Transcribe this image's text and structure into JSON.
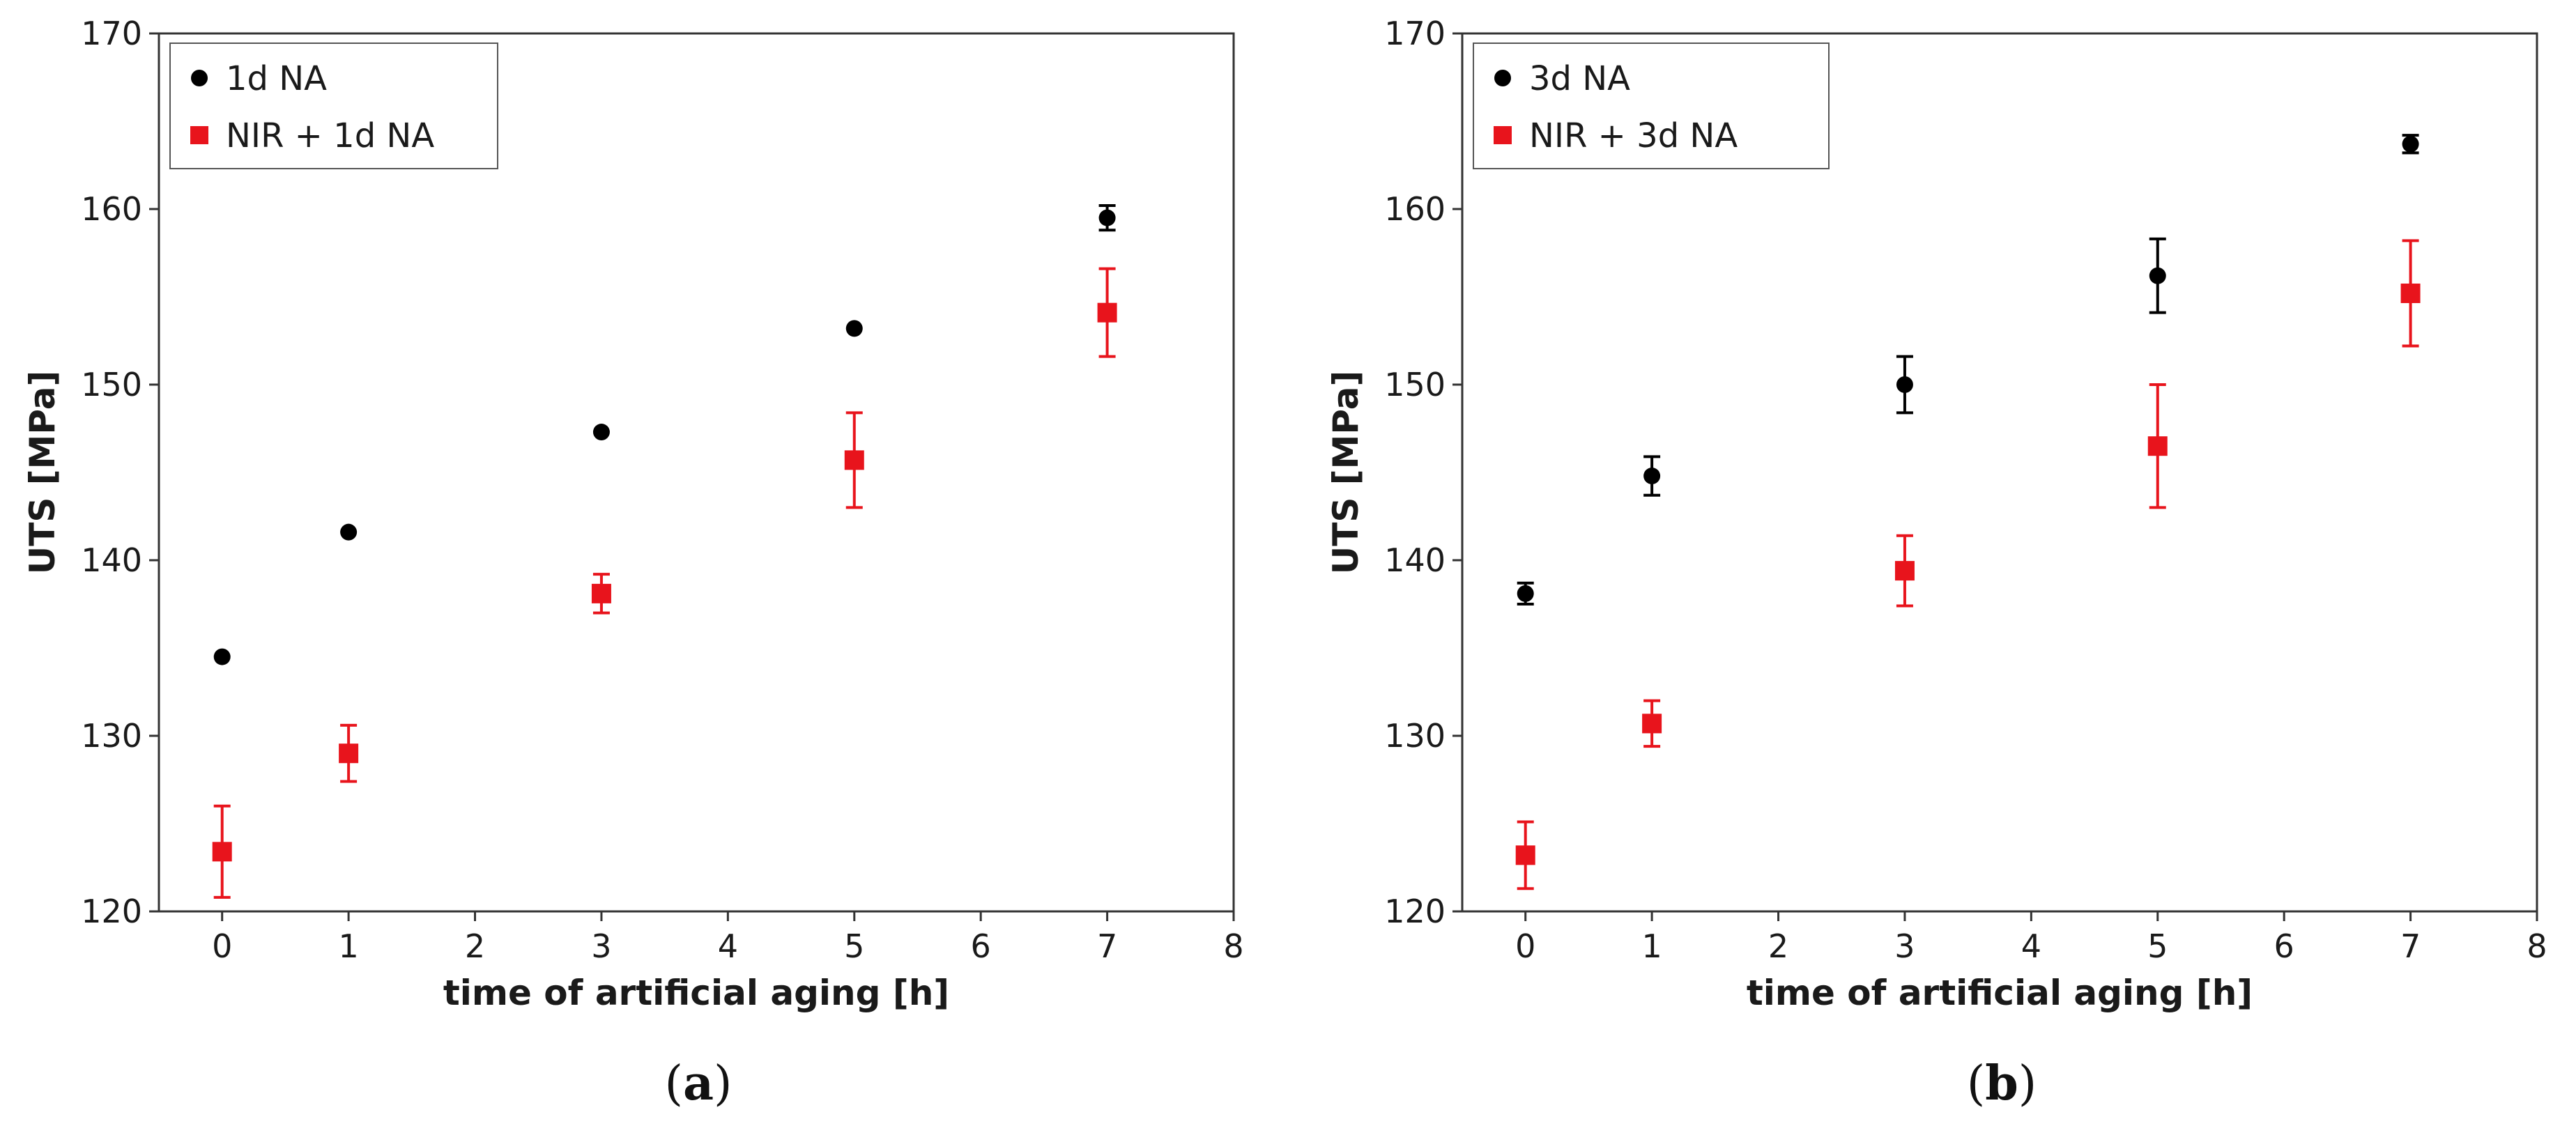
{
  "chart_data": [
    {
      "type": "scatter",
      "panel_label": {
        "open": "(",
        "letter": "a",
        "close": ")"
      },
      "xlabel": "time of artificial aging [h]",
      "ylabel": "UTS [MPa]",
      "xlim": [
        -0.5,
        8
      ],
      "ylim": [
        120,
        170
      ],
      "xticks": [
        "0",
        "1",
        "2",
        "3",
        "4",
        "5",
        "6",
        "7",
        "8"
      ],
      "yticks": [
        "120",
        "130",
        "140",
        "150",
        "160",
        "170"
      ],
      "grid": false,
      "legend_position": "top-left",
      "series": [
        {
          "name": "1d NA",
          "marker": "circle",
          "color": "#000000",
          "x": [
            0,
            1,
            3,
            5,
            7
          ],
          "y": [
            134.5,
            141.6,
            147.3,
            153.2,
            159.5
          ],
          "err": [
            0,
            0,
            0,
            0,
            0.7
          ]
        },
        {
          "name": "NIR + 1d NA",
          "marker": "square",
          "color": "#e8141c",
          "x": [
            0,
            1,
            3,
            5,
            7
          ],
          "y": [
            123.4,
            129.0,
            138.1,
            145.7,
            154.1
          ],
          "err": [
            2.6,
            1.6,
            1.1,
            2.7,
            2.5
          ]
        }
      ]
    },
    {
      "type": "scatter",
      "panel_label": {
        "open": "(",
        "letter": "b",
        "close": ")"
      },
      "xlabel": "time of artificial aging [h]",
      "ylabel": "UTS [MPa]",
      "xlim": [
        -0.5,
        8
      ],
      "ylim": [
        120,
        170
      ],
      "xticks": [
        "0",
        "1",
        "2",
        "3",
        "4",
        "5",
        "6",
        "7",
        "8"
      ],
      "yticks": [
        "120",
        "130",
        "140",
        "150",
        "160",
        "170"
      ],
      "grid": false,
      "legend_position": "top-left",
      "series": [
        {
          "name": "3d NA",
          "marker": "circle",
          "color": "#000000",
          "x": [
            0,
            1,
            3,
            5,
            7
          ],
          "y": [
            138.1,
            144.8,
            150.0,
            156.2,
            163.7
          ],
          "err": [
            0.6,
            1.1,
            1.6,
            2.1,
            0.5
          ]
        },
        {
          "name": "NIR + 3d NA",
          "marker": "square",
          "color": "#e8141c",
          "x": [
            0,
            1,
            3,
            5,
            7
          ],
          "y": [
            123.2,
            130.7,
            139.4,
            146.5,
            155.2
          ],
          "err": [
            1.9,
            1.3,
            2.0,
            3.5,
            3.0
          ]
        }
      ]
    }
  ]
}
